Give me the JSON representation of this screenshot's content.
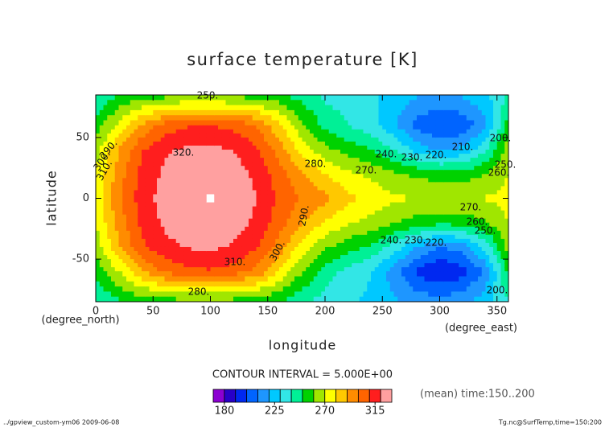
{
  "chart_data": {
    "type": "contour",
    "title": "surface temperature [K]",
    "xlabel": "longitude",
    "ylabel": "latitude",
    "xunits": "(degree_east)",
    "yunits": "(degree_north)",
    "xlim": [
      0,
      360
    ],
    "ylim": [
      -85,
      85
    ],
    "xticks": [
      0,
      50,
      100,
      150,
      200,
      250,
      300,
      350
    ],
    "yticks": [
      50,
      0,
      -50
    ],
    "x": [
      0,
      20,
      40,
      60,
      80,
      100,
      120,
      140,
      160,
      180,
      200,
      220,
      240,
      260,
      280,
      300,
      320,
      340,
      360
    ],
    "y": [
      85,
      60,
      40,
      20,
      0,
      -20,
      -40,
      -60,
      -85
    ],
    "z": [
      [
        240,
        250,
        254,
        256,
        258,
        258,
        257,
        255,
        252,
        245,
        238,
        235,
        232,
        226,
        221,
        219,
        221,
        228,
        240
      ],
      [
        255,
        272,
        292,
        304,
        309,
        310,
        307,
        300,
        282,
        262,
        247,
        240,
        234,
        222,
        206,
        199,
        203,
        216,
        255
      ],
      [
        265,
        290,
        309,
        318,
        322,
        322,
        320,
        312,
        296,
        276,
        263,
        256,
        250,
        240,
        226,
        218,
        222,
        238,
        265
      ],
      [
        270,
        295,
        313,
        322,
        326,
        327,
        325,
        318,
        305,
        290,
        280,
        272,
        268,
        262,
        258,
        255,
        255,
        260,
        270
      ],
      [
        273,
        298,
        315,
        324,
        328,
        331,
        327,
        320,
        308,
        300,
        293,
        283,
        276,
        272,
        270,
        270,
        270,
        271,
        273
      ],
      [
        270,
        294,
        312,
        322,
        326,
        327,
        325,
        318,
        305,
        290,
        279,
        271,
        267,
        261,
        256,
        253,
        254,
        259,
        270
      ],
      [
        264,
        289,
        308,
        317,
        321,
        322,
        319,
        311,
        296,
        275,
        262,
        254,
        248,
        236,
        220,
        210,
        215,
        234,
        264
      ],
      [
        253,
        270,
        290,
        302,
        308,
        309,
        306,
        298,
        280,
        260,
        245,
        237,
        230,
        215,
        198,
        190,
        196,
        212,
        253
      ],
      [
        240,
        249,
        253,
        255,
        257,
        257,
        256,
        254,
        250,
        243,
        236,
        232,
        228,
        222,
        216,
        214,
        217,
        226,
        240
      ]
    ],
    "colorbar": {
      "levels": [
        170,
        180,
        190,
        200,
        210,
        220,
        230,
        240,
        250,
        260,
        270,
        280,
        290,
        300,
        310,
        320,
        330
      ],
      "colors": [
        "#8c00d2",
        "#2800c8",
        "#0028f0",
        "#0064ff",
        "#1e96ff",
        "#00c8ff",
        "#32e6e6",
        "#00f096",
        "#00d200",
        "#a0e600",
        "#ffff00",
        "#ffc800",
        "#ff8c00",
        "#ff6400",
        "#ff1e1e",
        "#ffa0a0"
      ],
      "above_color": "#ffffff",
      "ticks": [
        180,
        225,
        270,
        315
      ]
    },
    "interval_text": "CONTOUR INTERVAL = 5.000E+00",
    "time_text": "(mean) time:150..200",
    "footer_left": "../gpview_custom-ym06  2009-06-08",
    "footer_right": "Tg.nc@SurfTemp,time=150:200",
    "annotations": [
      "250.",
      "320.",
      "310.",
      "300.",
      "290.",
      "280.",
      "270.",
      "240.",
      "230.",
      "220.",
      "210.",
      "200.",
      "260.",
      "250.",
      "270.",
      "260.",
      "250.",
      "240.",
      "230.",
      "220.",
      "200.",
      "280.",
      "290.",
      "300.",
      "310."
    ]
  }
}
